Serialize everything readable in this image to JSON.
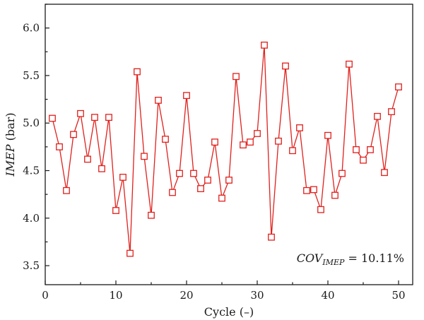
{
  "chart_data": {
    "type": "line",
    "title": "",
    "xlabel": "Cycle (–)",
    "ylabel_main": "IMEP",
    "ylabel_unit": " (bar)",
    "xlim": [
      0,
      52
    ],
    "ylim": [
      3.3,
      6.25
    ],
    "xticks": [
      0,
      10,
      20,
      30,
      40,
      50
    ],
    "yticks": [
      3.5,
      4.0,
      4.5,
      5.0,
      5.5,
      6.0
    ],
    "ytick_labels": [
      "3.5",
      "4.0",
      "4.5",
      "5.0",
      "5.5",
      "6.0"
    ],
    "grid": false,
    "marker": "open-square",
    "color": "#e0201c",
    "annotation": {
      "main": "COV",
      "sub": "IMEP",
      "value": " = 10.11%"
    },
    "x": [
      1,
      2,
      3,
      4,
      5,
      6,
      7,
      8,
      9,
      10,
      11,
      12,
      13,
      14,
      15,
      16,
      17,
      18,
      19,
      20,
      21,
      22,
      23,
      24,
      25,
      26,
      27,
      28,
      29,
      30,
      31,
      32,
      33,
      34,
      35,
      36,
      37,
      38,
      39,
      40,
      41,
      42,
      43,
      44,
      45,
      46,
      47,
      48,
      49,
      50
    ],
    "y": [
      5.05,
      4.75,
      4.29,
      4.88,
      5.1,
      4.62,
      5.06,
      4.52,
      5.06,
      4.08,
      4.43,
      3.63,
      5.54,
      4.65,
      4.03,
      5.24,
      4.83,
      4.27,
      4.47,
      5.29,
      4.47,
      4.31,
      4.4,
      4.8,
      4.21,
      4.4,
      5.49,
      4.77,
      4.8,
      4.89,
      5.82,
      3.8,
      4.81,
      5.6,
      4.71,
      4.95,
      4.29,
      4.3,
      4.09,
      4.87,
      4.24,
      4.47,
      5.62,
      4.72,
      4.61,
      4.72,
      5.07,
      4.48,
      5.12,
      5.38
    ]
  }
}
